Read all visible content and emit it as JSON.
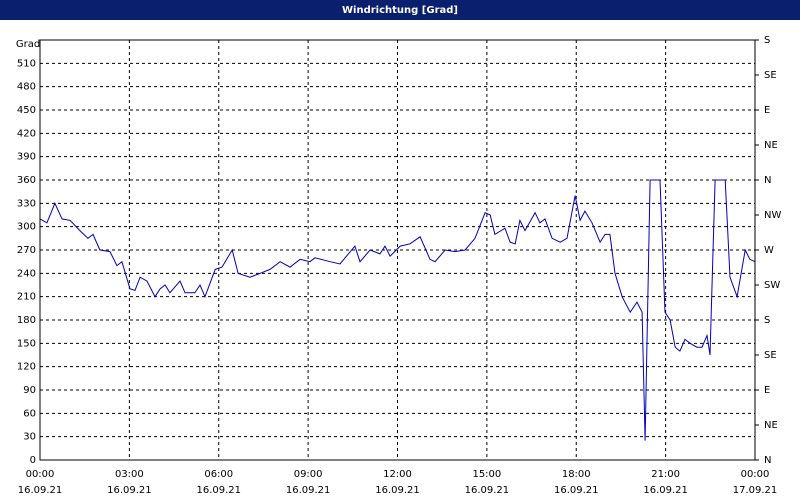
{
  "chart_data": {
    "type": "line",
    "title": "Windrichtung [Grad]",
    "y_label": "Grad",
    "x": [
      0,
      0.23,
      0.5,
      0.74,
      1.01,
      1.34,
      1.61,
      1.78,
      2.01,
      2.35,
      2.58,
      2.75,
      3.02,
      3.19,
      3.36,
      3.59,
      3.86,
      4.03,
      4.2,
      4.36,
      4.7,
      4.87,
      5.2,
      5.37,
      5.54,
      5.88,
      6.11,
      6.45,
      6.65,
      7.05,
      7.39,
      7.72,
      8.06,
      8.39,
      8.73,
      9.06,
      9.23,
      9.74,
      10.07,
      10.57,
      10.74,
      11.08,
      11.41,
      11.58,
      11.75,
      12.09,
      12.42,
      12.76,
      13.09,
      13.26,
      13.6,
      13.93,
      14.27,
      14.6,
      14.94,
      15.11,
      15.27,
      15.61,
      15.78,
      15.95,
      16.11,
      16.28,
      16.62,
      16.78,
      16.95,
      17.19,
      17.46,
      17.69,
      17.96,
      18.13,
      18.29,
      18.53,
      18.8,
      18.97,
      19.13,
      19.3,
      19.54,
      19.81,
      20.04,
      20.21,
      20.31,
      20.48,
      20.81,
      20.98,
      21.15,
      21.32,
      21.48,
      21.65,
      21.82,
      22.05,
      22.22,
      22.39,
      22.49,
      22.66,
      23,
      23.16,
      23.4,
      23.67,
      23.83,
      24
    ],
    "series": [
      {
        "color": "#0000c0",
        "values": [
          310,
          305,
          330,
          310,
          308,
          295,
          285,
          290,
          270,
          268,
          250,
          255,
          220,
          218,
          235,
          230,
          210,
          220,
          225,
          215,
          230,
          215,
          215,
          225,
          210,
          245,
          248,
          270,
          240,
          235,
          240,
          245,
          255,
          248,
          258,
          255,
          260,
          255,
          252,
          275,
          255,
          270,
          265,
          275,
          262,
          275,
          278,
          287,
          258,
          255,
          270,
          268,
          270,
          285,
          318,
          315,
          290,
          298,
          280,
          278,
          308,
          295,
          318,
          305,
          310,
          285,
          280,
          285,
          340,
          308,
          320,
          305,
          280,
          290,
          290,
          240,
          210,
          190,
          203,
          190,
          25,
          360,
          360,
          190,
          180,
          145,
          140,
          155,
          150,
          145,
          145,
          160,
          135,
          360,
          360,
          235,
          210,
          270,
          258,
          255
        ]
      }
    ],
    "xlim": [
      0,
      24
    ],
    "xticks": [
      {
        "value": 0,
        "label": "00:00"
      },
      {
        "value": 3,
        "label": "03:00"
      },
      {
        "value": 6,
        "label": "06:00"
      },
      {
        "value": 9,
        "label": "09:00"
      },
      {
        "value": 12,
        "label": "12:00"
      },
      {
        "value": 15,
        "label": "15:00"
      },
      {
        "value": 18,
        "label": "18:00"
      },
      {
        "value": 21,
        "label": "21:00"
      },
      {
        "value": 24,
        "label": "00:00"
      }
    ],
    "xtick_dates": [
      "16.09.21",
      "16.09.21",
      "16.09.21",
      "16.09.21",
      "16.09.21",
      "16.09.21",
      "16.09.21",
      "16.09.21",
      "17.09.21"
    ],
    "ylim": [
      0,
      540
    ],
    "yticks": [
      0,
      30,
      60,
      90,
      120,
      150,
      180,
      210,
      240,
      270,
      300,
      330,
      360,
      390,
      420,
      450,
      480,
      510
    ],
    "y2lim": [
      0,
      540
    ],
    "y2ticks": [
      {
        "value": 0,
        "label": "N"
      },
      {
        "value": 45,
        "label": "NE"
      },
      {
        "value": 90,
        "label": "E"
      },
      {
        "value": 135,
        "label": "SE"
      },
      {
        "value": 180,
        "label": "S"
      },
      {
        "value": 225,
        "label": "SW"
      },
      {
        "value": 270,
        "label": "W"
      },
      {
        "value": 315,
        "label": "NW"
      },
      {
        "value": 360,
        "label": "N"
      },
      {
        "value": 405,
        "label": "NE"
      },
      {
        "value": 450,
        "label": "E"
      },
      {
        "value": 495,
        "label": "SE"
      },
      {
        "value": 540,
        "label": "S"
      }
    ],
    "grid": true
  }
}
